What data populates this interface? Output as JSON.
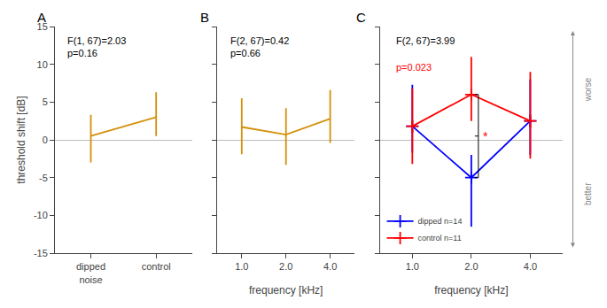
{
  "chart_data": [
    {
      "type": "line",
      "title": "A",
      "categories": [
        "dipped\nnoise",
        "control"
      ],
      "series": [
        {
          "color": "#D4900A",
          "values": [
            0.5,
            3.0
          ],
          "error_plus": [
            2.8,
            3.3
          ],
          "error_minus": [
            3.5,
            2.5
          ]
        }
      ],
      "ylabel": "threshold shift [dB]",
      "ylim": [
        -15,
        15
      ],
      "yticks": [
        -15,
        -10,
        -5,
        0,
        5,
        10,
        15
      ],
      "grid": false,
      "annotations": [
        {
          "text": "F(1, 67)=2.03\np=0.16"
        }
      ]
    },
    {
      "type": "line",
      "title": "B",
      "categories": [
        "1.0",
        "2.0",
        "4.0"
      ],
      "series": [
        {
          "color": "#D4900A",
          "values": [
            1.7,
            0.7,
            2.8
          ],
          "error_plus": [
            3.8,
            3.5,
            3.8
          ],
          "error_minus": [
            3.6,
            4.0,
            3.2
          ]
        }
      ],
      "xlabel": "frequency [kHz]",
      "ylim": [
        -15,
        15
      ],
      "yticks": [
        -15,
        -10,
        -5,
        0,
        5,
        10,
        15
      ],
      "grid": false,
      "tick_labels": "x",
      "annotations": [
        {
          "text": "F(2, 67)=0.42\np=0.66"
        }
      ]
    },
    {
      "type": "line",
      "title": "C",
      "categories": [
        "1.0",
        "2.0",
        "4.0"
      ],
      "series": [
        {
          "name": "dipped n=14",
          "color": "#0000FF",
          "marker": "plus",
          "values": [
            1.8,
            -5.0,
            2.5
          ],
          "error_plus": [
            5.5,
            3.0,
            5.5
          ],
          "error_minus": [
            3.5,
            6.5,
            4.5
          ]
        },
        {
          "name": "control n=11",
          "color": "#FF0000",
          "marker": "plus",
          "values": [
            1.8,
            6.0,
            2.5
          ],
          "error_plus": [
            5.0,
            5.0,
            6.5
          ],
          "error_minus": [
            5.0,
            3.5,
            5.0
          ]
        }
      ],
      "xlabel": "frequency [kHz]",
      "ylim": [
        -15,
        15
      ],
      "yticks": [
        -15,
        -10,
        -5,
        0,
        5,
        10,
        15
      ],
      "grid": false,
      "tick_labels": "x",
      "legend": "lower left",
      "annotations": [
        {
          "text": "F(2, 67)=3.99"
        },
        {
          "text": "p=0.023",
          "color": "#FF0000"
        },
        {
          "text": "*",
          "category": "2.0",
          "color": "#FF0000"
        },
        {
          "text": "worse",
          "side": "top",
          "color": "#888888"
        },
        {
          "text": "better",
          "side": "bottom",
          "color": "#888888"
        }
      ]
    }
  ]
}
